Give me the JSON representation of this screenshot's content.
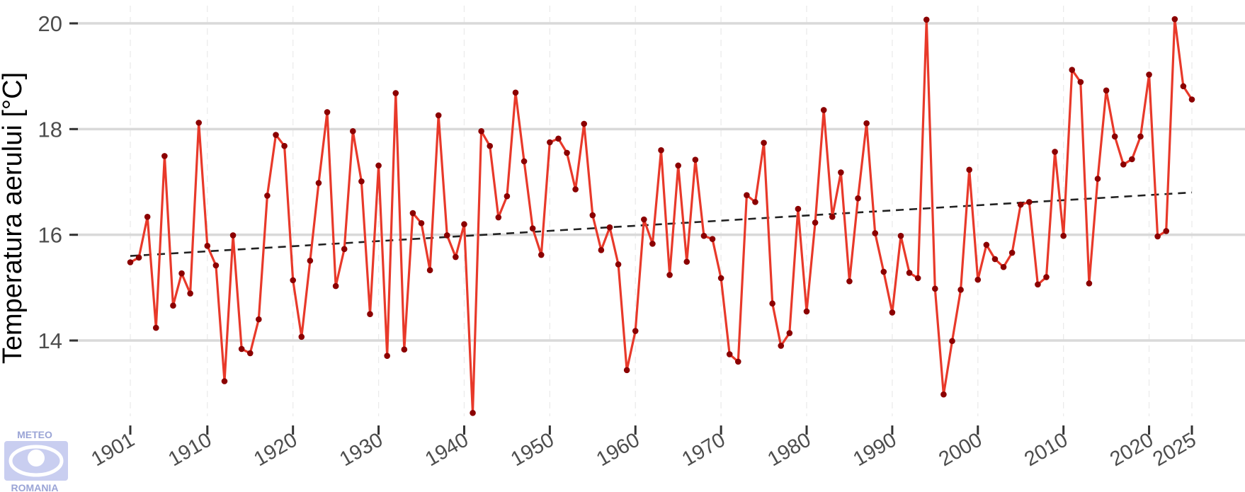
{
  "chart_data": {
    "type": "line",
    "title": "",
    "xlabel": "",
    "ylabel": "Temperatura aerului [°C]",
    "xlim": [
      1901,
      2025
    ],
    "ylim": [
      12.6,
      20.1
    ],
    "yticks": [
      14,
      16,
      18,
      20
    ],
    "xticks": [
      1901,
      1910,
      1920,
      1930,
      1940,
      1950,
      1960,
      1970,
      1980,
      1990,
      2000,
      2010,
      2020,
      2025
    ],
    "grid": true,
    "legend": "none",
    "colors": {
      "line": "#e8392a",
      "points": "#8b0000",
      "trend": "#222222",
      "grid_major": "#d9d9d9",
      "grid_minor": "#ebebeb"
    },
    "series": [
      {
        "x": [
          1901,
          1902,
          1903,
          1904,
          1905,
          1906,
          1907,
          1908,
          1909,
          1910,
          1911,
          1912,
          1913,
          1914,
          1915,
          1916,
          1917,
          1918,
          1919,
          1920,
          1921,
          1922,
          1923,
          1924,
          1925,
          1926,
          1927,
          1928,
          1929,
          1930,
          1931,
          1932,
          1933,
          1934,
          1935,
          1936,
          1937,
          1938,
          1939,
          1940,
          1941,
          1942,
          1943,
          1944,
          1945,
          1946,
          1947,
          1948,
          1949,
          1950,
          1951,
          1952,
          1953,
          1954,
          1955,
          1956,
          1957,
          1958,
          1959,
          1960,
          1961,
          1962,
          1963,
          1964,
          1965,
          1966,
          1967,
          1968,
          1969,
          1970,
          1971,
          1972,
          1973,
          1974,
          1975,
          1976,
          1977,
          1978,
          1979,
          1980,
          1981,
          1982,
          1983,
          1984,
          1985,
          1986,
          1987,
          1988,
          1989,
          1990,
          1991,
          1992,
          1993,
          1994,
          1995,
          1996,
          1997,
          1998,
          1999,
          2000,
          2001,
          2002,
          2003,
          2004,
          2005,
          2006,
          2007,
          2008,
          2009,
          2010,
          2011,
          2012,
          2013,
          2014,
          2015,
          2016,
          2017,
          2018,
          2019,
          2020,
          2021,
          2022,
          2023,
          2024,
          2025
        ],
        "y": [
          15.48,
          15.57,
          16.34,
          14.24,
          17.49,
          14.66,
          15.27,
          14.89,
          18.12,
          15.79,
          15.42,
          13.23,
          15.99,
          13.84,
          13.76,
          14.4,
          16.74,
          17.89,
          17.68,
          15.14,
          14.07,
          15.51,
          16.98,
          18.32,
          15.03,
          15.73,
          17.96,
          17.01,
          14.5,
          17.31,
          13.71,
          18.68,
          13.83,
          16.41,
          16.22,
          15.33,
          18.26,
          15.99,
          15.58,
          16.2,
          12.63,
          17.96,
          17.68,
          16.33,
          16.73,
          18.69,
          17.39,
          16.12,
          15.62,
          17.75,
          17.82,
          17.55,
          16.86,
          18.1,
          16.37,
          15.71,
          16.14,
          15.44,
          13.44,
          14.18,
          16.29,
          15.83,
          17.6,
          15.24,
          17.31,
          15.49,
          17.42,
          15.98,
          15.92,
          15.18,
          13.74,
          13.6,
          16.75,
          16.62,
          17.74,
          14.7,
          13.9,
          14.14,
          16.49,
          14.55,
          16.23,
          18.36,
          16.34,
          17.18,
          15.12,
          16.69,
          18.11,
          16.03,
          15.3,
          14.53,
          15.98,
          15.28,
          15.18,
          20.07,
          14.98,
          12.98,
          13.99,
          14.96,
          17.23,
          15.15,
          15.81,
          15.54,
          15.39,
          15.66,
          16.57,
          16.62,
          15.06,
          15.2,
          17.57,
          15.98,
          19.12,
          18.89,
          15.08,
          17.06,
          18.73,
          17.86,
          17.33,
          17.43,
          17.86,
          19.03,
          15.97,
          16.07,
          20.08,
          18.81,
          18.56
        ]
      }
    ],
    "trend": {
      "style": "dashed",
      "x": [
        1901,
        2025
      ],
      "y": [
        15.6,
        16.8
      ]
    }
  },
  "logo": {
    "top_text": "METEO",
    "bottom_text": "ROMANIA"
  }
}
